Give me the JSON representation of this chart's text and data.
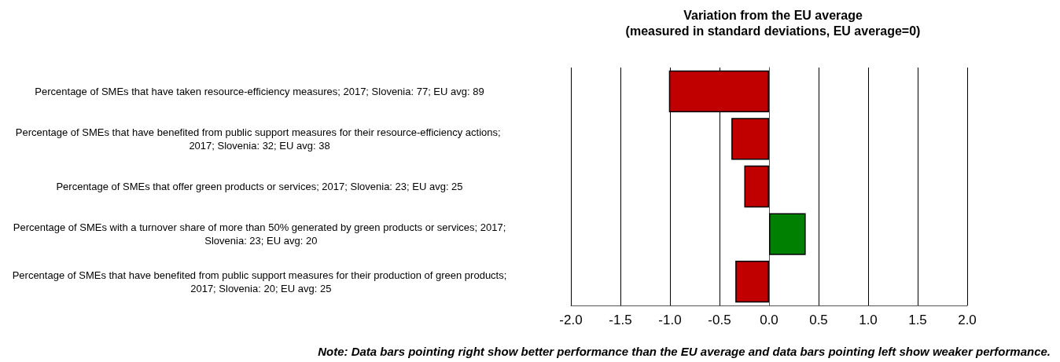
{
  "chart_data": {
    "type": "bar",
    "orientation": "horizontal",
    "title": "Variation from the EU average",
    "subtitle": "(measured in standard deviations, EU average=0)",
    "categories": [
      "Percentage of SMEs that have taken resource-efficiency measures; 2017; Slovenia: 77; EU avg: 89",
      "Percentage of SMEs that have benefited from public support measures for their resource-efficiency actions; 2017; Slovenia: 32; EU avg: 38",
      "Percentage of SMEs that offer green products or services; 2017; Slovenia: 23; EU avg: 25",
      "Percentage of SMEs with a turnover share of more than 50% generated by green products or services; 2017; Slovenia: 23; EU avg: 20",
      "Percentage of SMEs that have benefited from public support measures for their production of green products; 2017; Slovenia: 20; EU avg: 25"
    ],
    "values": [
      -1.01,
      -0.38,
      -0.25,
      0.37,
      -0.34
    ],
    "colors": [
      "#c00000",
      "#c00000",
      "#c00000",
      "#008000",
      "#c00000"
    ],
    "xlim": [
      -2,
      2
    ],
    "xticks": [
      {
        "value": -2,
        "label": "-2.0"
      },
      {
        "value": -1.5,
        "label": "-1.5"
      },
      {
        "value": -1,
        "label": "-1.0"
      },
      {
        "value": -0.5,
        "label": "-0.5"
      },
      {
        "value": 0,
        "label": "0.0"
      },
      {
        "value": 0.5,
        "label": "0.5"
      },
      {
        "value": 1,
        "label": "1.0"
      },
      {
        "value": 1.5,
        "label": "1.5"
      },
      {
        "value": 2,
        "label": "2.0"
      }
    ],
    "grid": "x",
    "annotations": [
      "Note: Data bars pointing right show better performance than the EU average and data bars pointing left show weaker performance."
    ]
  }
}
